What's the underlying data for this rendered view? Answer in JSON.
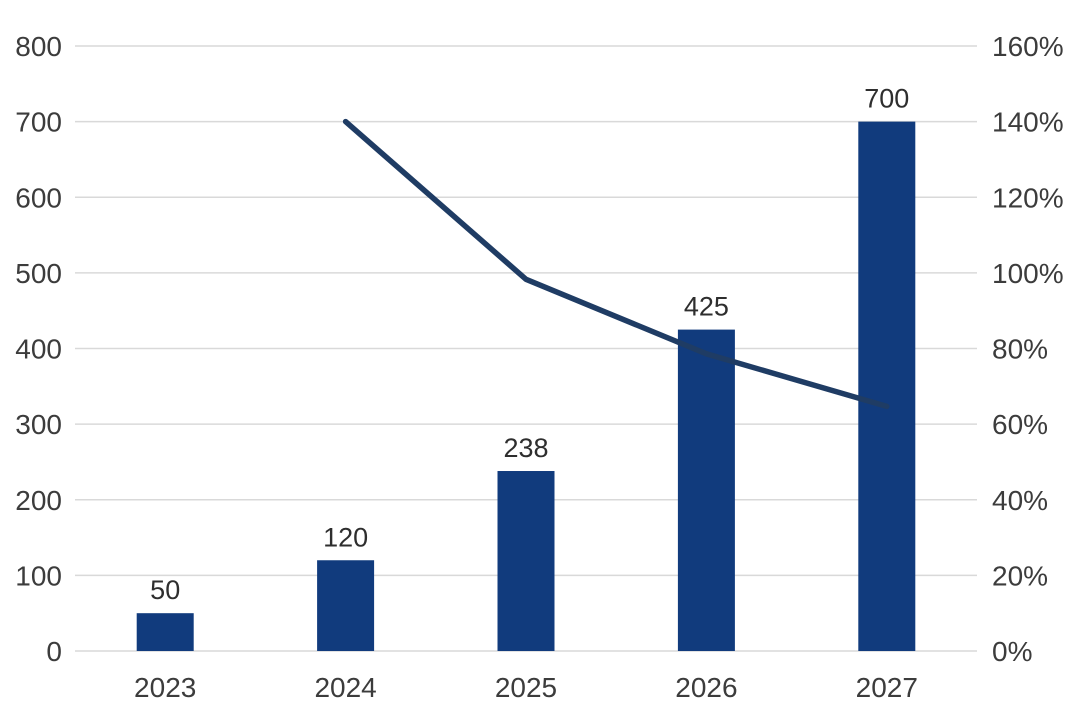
{
  "chart_data": {
    "type": "bar",
    "subtype": "combo-bar-line",
    "title": "",
    "xlabel": "",
    "ylabel": "",
    "categories": [
      "2023",
      "2024",
      "2025",
      "2026",
      "2027"
    ],
    "series": [
      {
        "name": "values",
        "type": "bar",
        "axis": "left",
        "values": [
          50,
          120,
          238,
          425,
          700
        ],
        "data_labels": [
          "50",
          "120",
          "238",
          "425",
          "700"
        ],
        "color": "#113B7D"
      },
      {
        "name": "growth-rate",
        "type": "line",
        "axis": "right",
        "category_indices": [
          1,
          2,
          3,
          4
        ],
        "values_pct": [
          140.0,
          98.3,
          78.6,
          64.7
        ],
        "color": "#1F3C64"
      }
    ],
    "left_axis": {
      "min": 0,
      "max": 800,
      "step": 100,
      "tick_labels": [
        "0",
        "100",
        "200",
        "300",
        "400",
        "500",
        "600",
        "700",
        "800"
      ]
    },
    "right_axis": {
      "min": 0,
      "max": 160,
      "step": 20,
      "tick_labels": [
        "0%",
        "20%",
        "40%",
        "60%",
        "80%",
        "100%",
        "120%",
        "140%",
        "160%"
      ]
    },
    "grid": true,
    "legend": "none",
    "colors": {
      "background": "#ffffff",
      "gridline": "#d9d9d9",
      "axis_text": "#3c3c3c",
      "data_label_text": "#2e2e2e",
      "bar_fill": "#113B7D",
      "line_stroke": "#1F3C64"
    }
  }
}
